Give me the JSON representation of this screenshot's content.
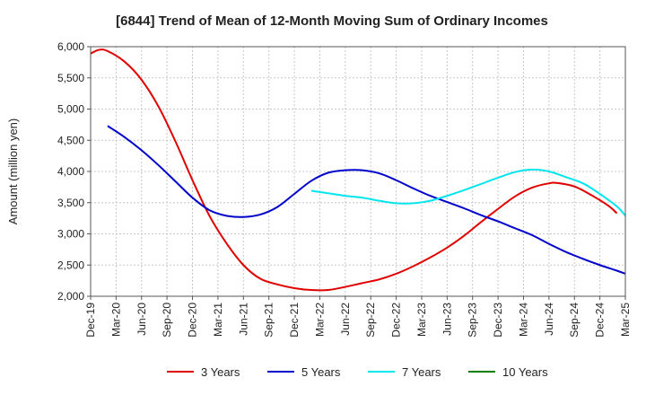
{
  "chart_data": {
    "type": "line",
    "title": "[6844]  Trend of Mean of 12-Month Moving Sum of Ordinary Incomes",
    "xlabel": "",
    "ylabel": "Amount (million yen)",
    "ylim": [
      2000,
      6000
    ],
    "yticks": [
      2000,
      2500,
      3000,
      3500,
      4000,
      4500,
      5000,
      5500,
      6000
    ],
    "ytick_labels": [
      "2,000",
      "2,500",
      "3,000",
      "3,500",
      "4,000",
      "4,500",
      "5,000",
      "5,500",
      "6,000"
    ],
    "xtick_labels": [
      "Dec-19",
      "Mar-20",
      "Jun-20",
      "Sep-20",
      "Dec-20",
      "Mar-21",
      "Jun-21",
      "Sep-21",
      "Dec-21",
      "Mar-22",
      "Jun-22",
      "Sep-22",
      "Dec-22",
      "Mar-23",
      "Jun-23",
      "Sep-23",
      "Dec-23",
      "Mar-24",
      "Jun-24",
      "Sep-24",
      "Dec-24",
      "Mar-25"
    ],
    "x_unit": "months since Dec-19",
    "grid": true,
    "legend_position": "bottom",
    "series": [
      {
        "name": "3 Years",
        "color": "#e00000",
        "points": [
          [
            0,
            5890
          ],
          [
            1,
            5950
          ],
          [
            2,
            5930
          ],
          [
            4,
            5760
          ],
          [
            6,
            5470
          ],
          [
            8,
            5040
          ],
          [
            10,
            4480
          ],
          [
            12,
            3860
          ],
          [
            14,
            3290
          ],
          [
            16,
            2850
          ],
          [
            18,
            2500
          ],
          [
            20,
            2280
          ],
          [
            22,
            2190
          ],
          [
            24,
            2130
          ],
          [
            26,
            2100
          ],
          [
            28,
            2100
          ],
          [
            30,
            2150
          ],
          [
            32,
            2210
          ],
          [
            34,
            2270
          ],
          [
            36,
            2360
          ],
          [
            38,
            2480
          ],
          [
            40,
            2620
          ],
          [
            42,
            2780
          ],
          [
            44,
            2970
          ],
          [
            46,
            3190
          ],
          [
            48,
            3400
          ],
          [
            50,
            3600
          ],
          [
            52,
            3740
          ],
          [
            54,
            3810
          ],
          [
            55,
            3815
          ],
          [
            57,
            3760
          ],
          [
            59,
            3620
          ],
          [
            61,
            3450
          ],
          [
            62,
            3330
          ]
        ]
      },
      {
        "name": "5 Years",
        "color": "#0000cc",
        "points": [
          [
            2,
            4730
          ],
          [
            4,
            4550
          ],
          [
            6,
            4340
          ],
          [
            8,
            4100
          ],
          [
            10,
            3840
          ],
          [
            12,
            3580
          ],
          [
            14,
            3380
          ],
          [
            16,
            3290
          ],
          [
            18,
            3270
          ],
          [
            20,
            3310
          ],
          [
            22,
            3430
          ],
          [
            24,
            3640
          ],
          [
            26,
            3850
          ],
          [
            28,
            3980
          ],
          [
            30,
            4020
          ],
          [
            32,
            4020
          ],
          [
            34,
            3970
          ],
          [
            36,
            3860
          ],
          [
            38,
            3730
          ],
          [
            40,
            3610
          ],
          [
            42,
            3510
          ],
          [
            44,
            3410
          ],
          [
            46,
            3300
          ],
          [
            48,
            3200
          ],
          [
            50,
            3090
          ],
          [
            52,
            2980
          ],
          [
            54,
            2840
          ],
          [
            56,
            2710
          ],
          [
            58,
            2600
          ],
          [
            60,
            2500
          ],
          [
            62,
            2410
          ],
          [
            63,
            2360
          ]
        ]
      },
      {
        "name": "7 Years",
        "color": "#00e5ee",
        "points": [
          [
            26,
            3690
          ],
          [
            28,
            3650
          ],
          [
            30,
            3610
          ],
          [
            32,
            3580
          ],
          [
            34,
            3530
          ],
          [
            36,
            3490
          ],
          [
            38,
            3490
          ],
          [
            40,
            3530
          ],
          [
            42,
            3610
          ],
          [
            44,
            3700
          ],
          [
            46,
            3800
          ],
          [
            48,
            3900
          ],
          [
            50,
            3990
          ],
          [
            52,
            4030
          ],
          [
            54,
            4000
          ],
          [
            56,
            3910
          ],
          [
            58,
            3810
          ],
          [
            60,
            3640
          ],
          [
            62,
            3440
          ],
          [
            63,
            3290
          ]
        ]
      },
      {
        "name": "10 Years",
        "color": "#008000",
        "points": []
      }
    ]
  }
}
